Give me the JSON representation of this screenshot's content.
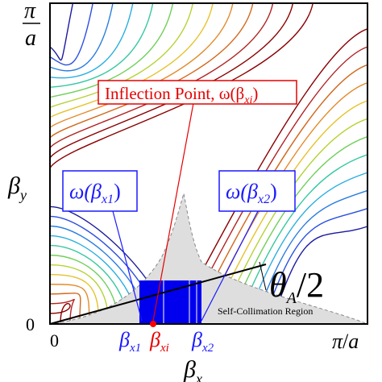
{
  "axes": {
    "y_top_tick": {
      "num": "π",
      "den": "a"
    },
    "y_origin": "0",
    "x_origin": "0",
    "x_right_tick": {
      "num": "π",
      "den": "a"
    },
    "y_label": {
      "base": "β",
      "sub": "y"
    },
    "x_label": {
      "base": "β",
      "sub": "x"
    }
  },
  "callouts": {
    "inflection": {
      "prefix": "Inflection Point, ω(β",
      "sub": "xi",
      "suffix": ")",
      "color": "#e60000"
    },
    "omega1": {
      "prefix": "ω(β",
      "sub": "x1",
      "suffix": ")",
      "color": "#1a1aff"
    },
    "omega2": {
      "prefix": "ω(β",
      "sub": "x2",
      "suffix": ")",
      "color": "#1a1aff"
    }
  },
  "angle_label": {
    "theta": "θ",
    "sub": "A",
    "rest": "/2"
  },
  "region_label": "Self-Collimation Region",
  "x_markers": [
    {
      "base": "β",
      "sub": "x1",
      "color": "#1a1aff"
    },
    {
      "base": "β",
      "sub": "xi",
      "color": "#e60000"
    },
    {
      "base": "β",
      "sub": "x2",
      "color": "#1a1aff"
    }
  ],
  "colors": {
    "band_fill": "#0000ee",
    "region_fill": "#dedede",
    "inflection_dot": "#ff0000"
  }
}
